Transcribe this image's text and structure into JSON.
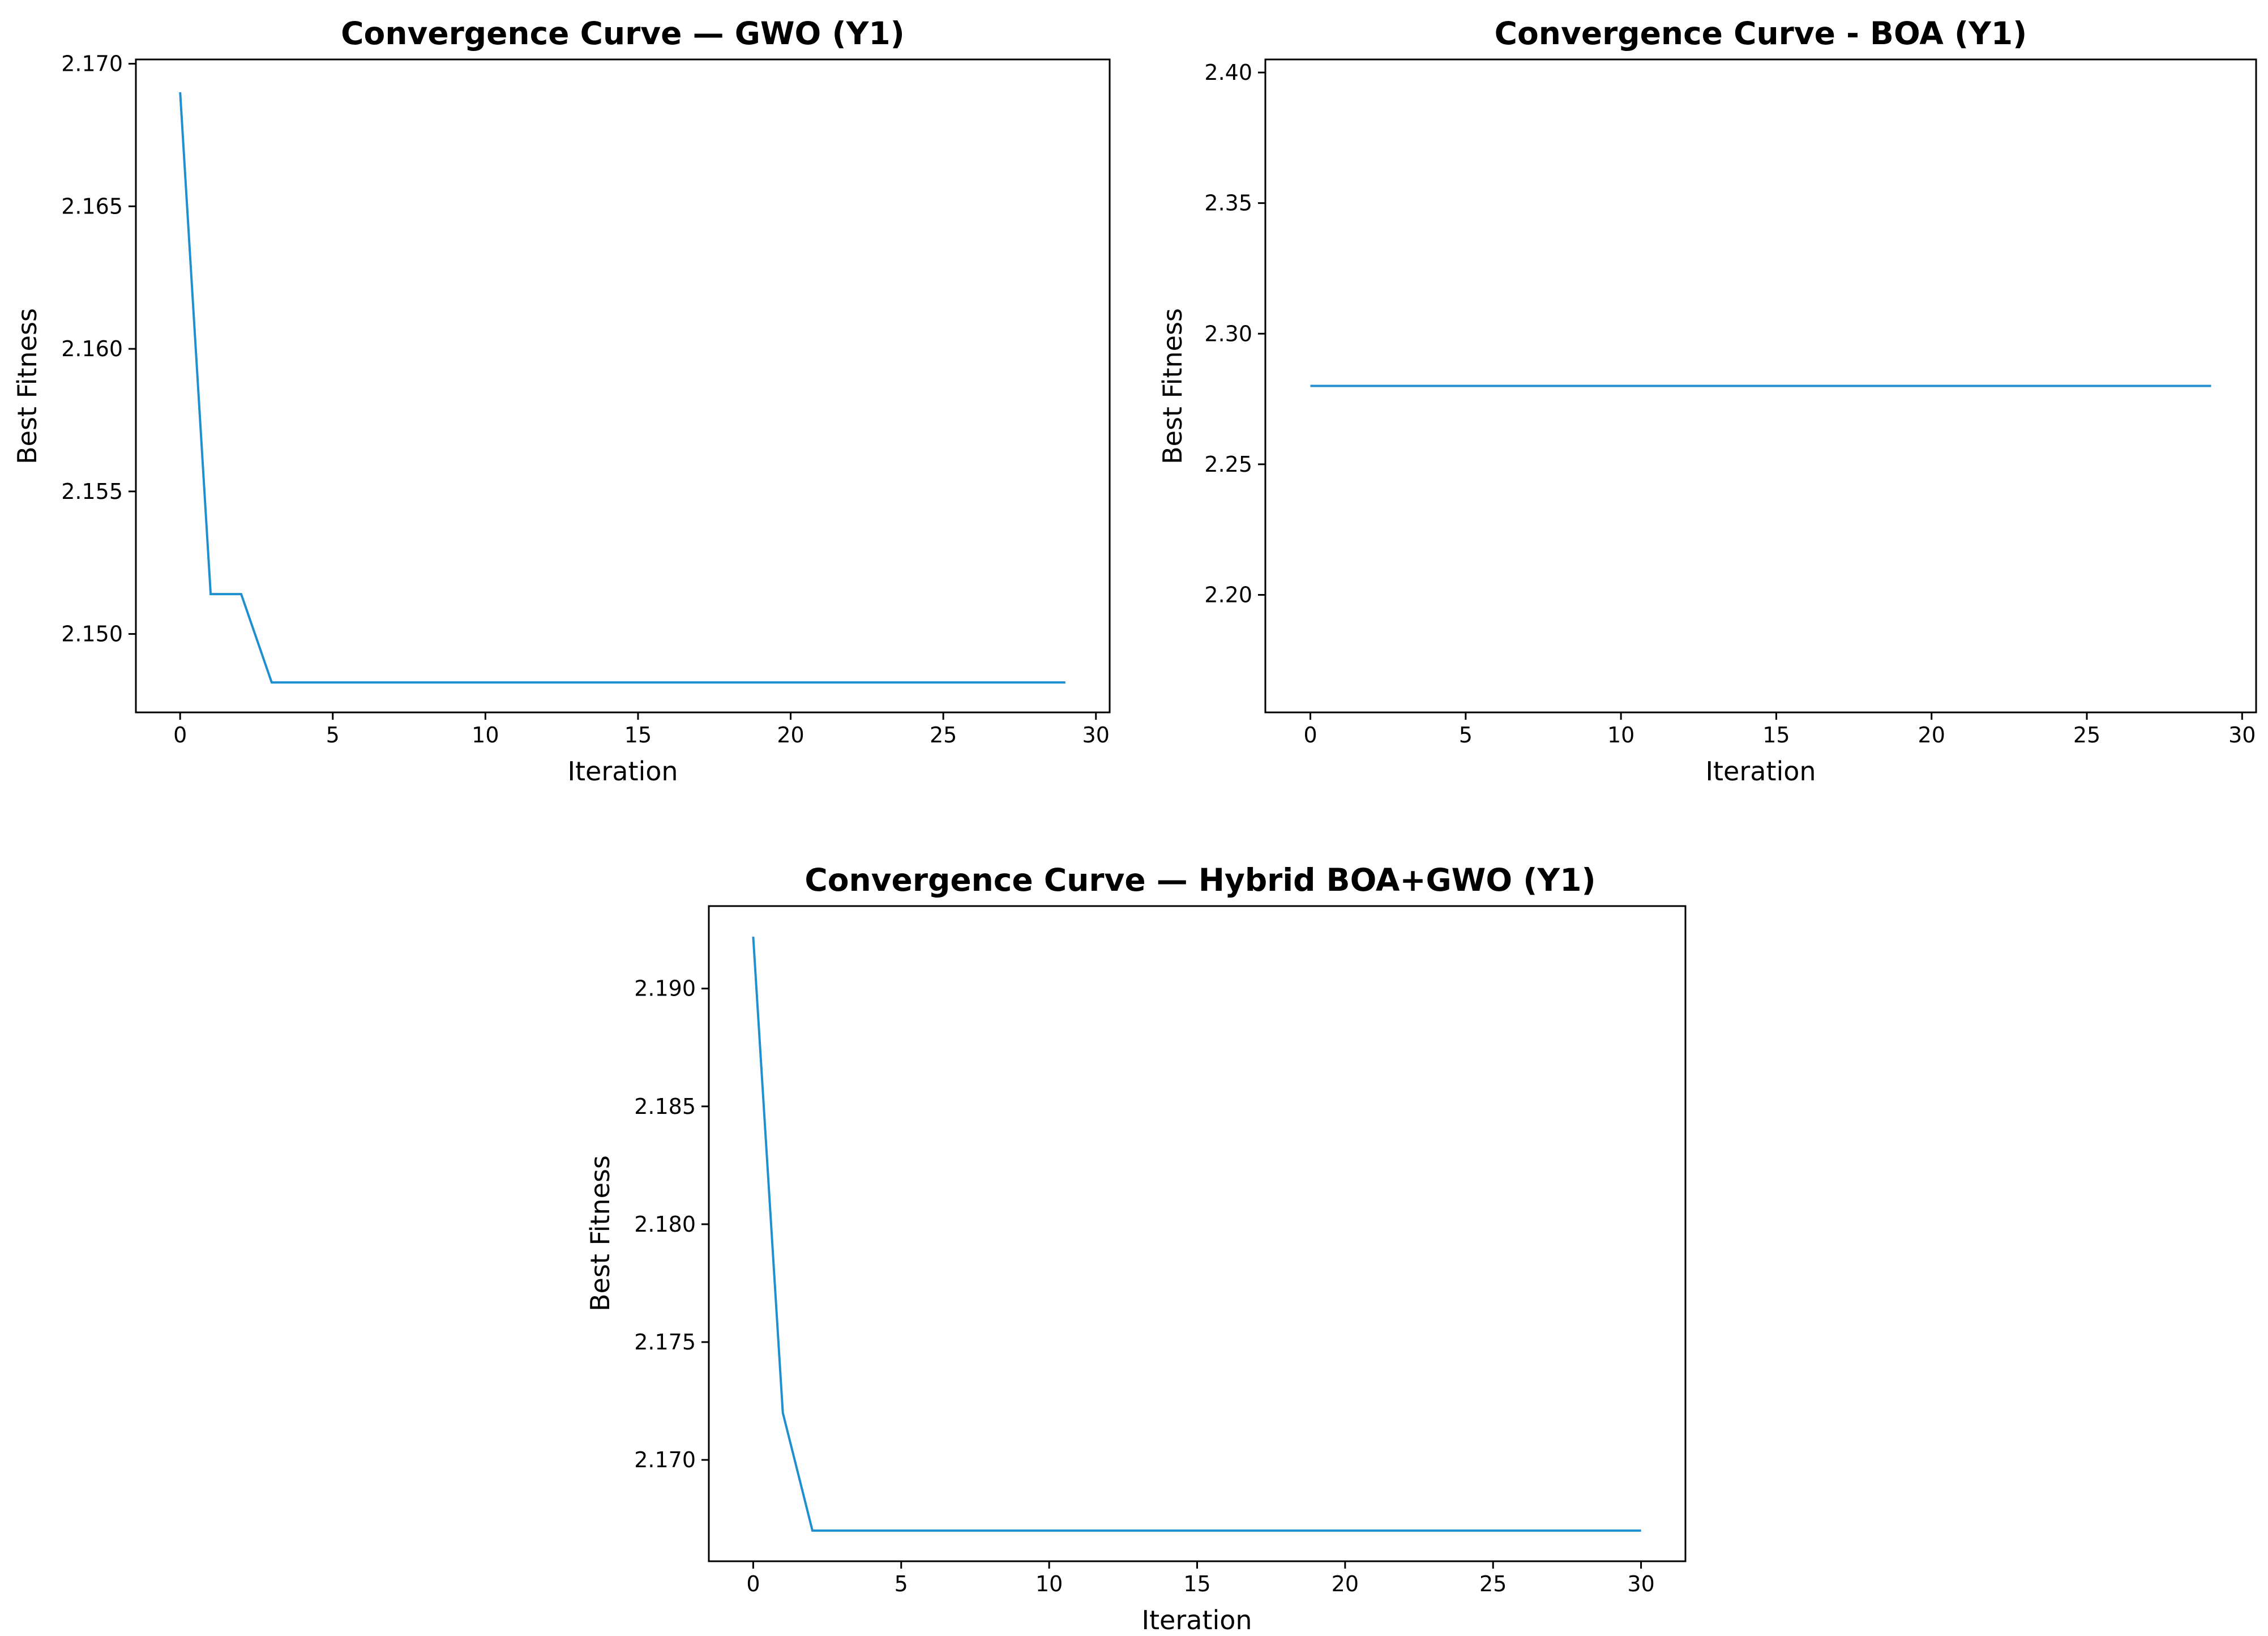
{
  "chart_data": [
    {
      "id": "gwo",
      "type": "line",
      "title": "Convergence Curve — GWO (Y1)",
      "xlabel": "Iteration",
      "ylabel": "Best Fitness",
      "xlim": [
        -1.45,
        30.45
      ],
      "ylim": [
        2.14725,
        2.17015
      ],
      "xticks": [
        0,
        5,
        10,
        15,
        20,
        25,
        30
      ],
      "xtick_labels": [
        "0",
        "5",
        "10",
        "15",
        "20",
        "25",
        "30"
      ],
      "yticks": [
        2.15,
        2.155,
        2.16,
        2.165,
        2.17
      ],
      "ytick_labels": [
        "2.150",
        "2.155",
        "2.160",
        "2.165",
        "2.170"
      ],
      "grid": false,
      "color": "#1f8fcf",
      "series": [
        {
          "x": [
            0,
            1,
            2,
            3,
            4,
            5,
            6,
            7,
            8,
            9,
            10,
            11,
            12,
            13,
            14,
            15,
            16,
            17,
            18,
            19,
            20,
            21,
            22,
            23,
            24,
            25,
            26,
            27,
            28,
            29
          ],
          "y": [
            2.169,
            2.1514,
            2.1514,
            2.1483,
            2.1483,
            2.1483,
            2.1483,
            2.1483,
            2.1483,
            2.1483,
            2.1483,
            2.1483,
            2.1483,
            2.1483,
            2.1483,
            2.1483,
            2.1483,
            2.1483,
            2.1483,
            2.1483,
            2.1483,
            2.1483,
            2.1483,
            2.1483,
            2.1483,
            2.1483,
            2.1483,
            2.1483,
            2.1483,
            2.1483
          ]
        }
      ]
    },
    {
      "id": "boa",
      "type": "line",
      "title": "Convergence Curve - BOA (Y1)",
      "xlabel": "Iteration",
      "ylabel": "Best Fitness",
      "xlim": [
        -1.45,
        30.45
      ],
      "ylim": [
        2.155,
        2.405
      ],
      "xticks": [
        0,
        5,
        10,
        15,
        20,
        25,
        30
      ],
      "xtick_labels": [
        "0",
        "5",
        "10",
        "15",
        "20",
        "25",
        "30"
      ],
      "yticks": [
        2.2,
        2.25,
        2.3,
        2.35,
        2.4
      ],
      "ytick_labels": [
        "2.20",
        "2.25",
        "2.30",
        "2.35",
        "2.40"
      ],
      "grid": false,
      "color": "#1f8fcf",
      "series": [
        {
          "x": [
            0,
            1,
            2,
            3,
            4,
            5,
            6,
            7,
            8,
            9,
            10,
            11,
            12,
            13,
            14,
            15,
            16,
            17,
            18,
            19,
            20,
            21,
            22,
            23,
            24,
            25,
            26,
            27,
            28,
            29
          ],
          "y": [
            2.28,
            2.28,
            2.28,
            2.28,
            2.28,
            2.28,
            2.28,
            2.28,
            2.28,
            2.28,
            2.28,
            2.28,
            2.28,
            2.28,
            2.28,
            2.28,
            2.28,
            2.28,
            2.28,
            2.28,
            2.28,
            2.28,
            2.28,
            2.28,
            2.28,
            2.28,
            2.28,
            2.28,
            2.28,
            2.28
          ]
        }
      ]
    },
    {
      "id": "hybrid",
      "type": "line",
      "title": "Convergence Curve — Hybrid BOA+GWO (Y1)",
      "xlabel": "Iteration",
      "ylabel": "Best Fitness",
      "xlim": [
        -1.5,
        31.5
      ],
      "ylim": [
        2.1657,
        2.1935
      ],
      "xticks": [
        0,
        5,
        10,
        15,
        20,
        25,
        30
      ],
      "xtick_labels": [
        "0",
        "5",
        "10",
        "15",
        "20",
        "25",
        "30"
      ],
      "yticks": [
        2.17,
        2.175,
        2.18,
        2.185,
        2.19
      ],
      "ytick_labels": [
        "2.170",
        "2.175",
        "2.180",
        "2.185",
        "2.190"
      ],
      "grid": false,
      "color": "#1f8fcf",
      "series": [
        {
          "x": [
            0,
            1,
            2,
            3,
            4,
            5,
            6,
            7,
            8,
            9,
            10,
            11,
            12,
            13,
            14,
            15,
            16,
            17,
            18,
            19,
            20,
            21,
            22,
            23,
            24,
            25,
            26,
            27,
            28,
            29,
            30
          ],
          "y": [
            2.1922,
            2.172,
            2.167,
            2.167,
            2.167,
            2.167,
            2.167,
            2.167,
            2.167,
            2.167,
            2.167,
            2.167,
            2.167,
            2.167,
            2.167,
            2.167,
            2.167,
            2.167,
            2.167,
            2.167,
            2.167,
            2.167,
            2.167,
            2.167,
            2.167,
            2.167,
            2.167,
            2.167,
            2.167,
            2.167,
            2.167
          ]
        }
      ]
    }
  ]
}
